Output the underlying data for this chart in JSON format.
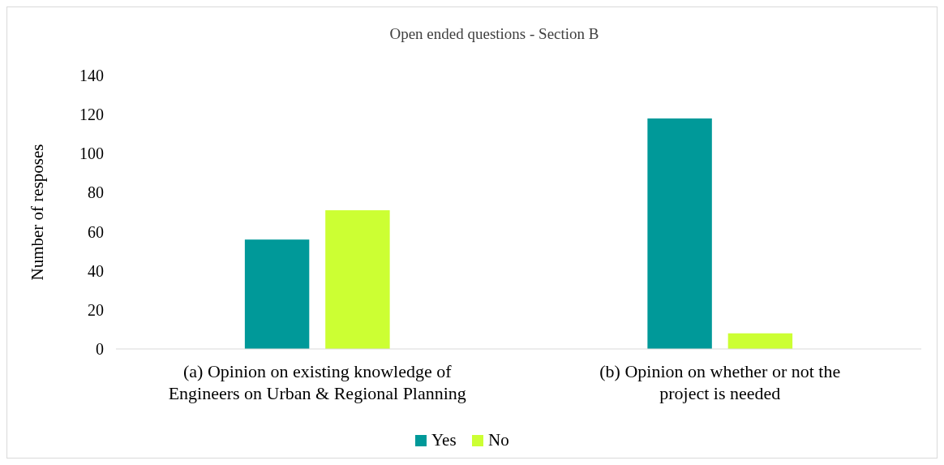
{
  "chart_data": {
    "type": "bar",
    "title": "Open ended questions - Section B",
    "ylabel": "Number of resposes",
    "categories": [
      "(a) Opinion on existing knowledge of Engineers on Urban & Regional Planning",
      "(b) Opinion on whether or not the project is needed"
    ],
    "series": [
      {
        "name": "Yes",
        "color": "#009999",
        "values": [
          56,
          118
        ]
      },
      {
        "name": "No",
        "color": "#ccff33",
        "values": [
          71,
          8
        ]
      }
    ],
    "ylim": [
      0,
      140
    ],
    "yticks": [
      0,
      20,
      40,
      60,
      80,
      100,
      120,
      140
    ],
    "grid": false,
    "legend": "bottom"
  }
}
